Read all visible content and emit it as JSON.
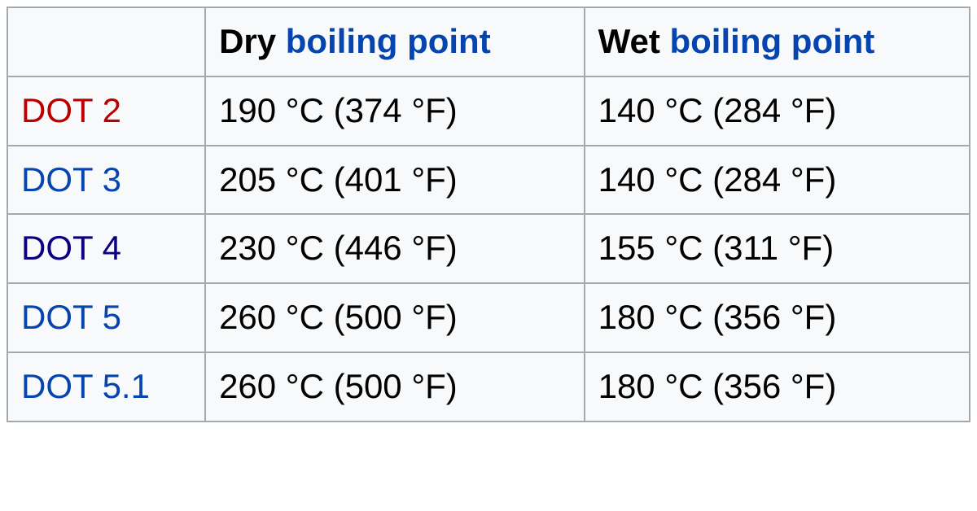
{
  "table": {
    "type": "table",
    "background_color": "#f8f9fa",
    "border_color": "#a2a9b1",
    "text_color": "#000000",
    "link_color": "#0645ad",
    "red_link_color": "#ba0000",
    "visited_link_color": "#0b0080",
    "font_size_pt": 32,
    "columns": [
      {
        "label": "",
        "is_empty": true
      },
      {
        "prefix": "Dry ",
        "link": "boiling point",
        "has_link": true
      },
      {
        "prefix": "Wet ",
        "link": "boiling point",
        "has_link": true
      }
    ],
    "rows": [
      {
        "label": "DOT 2",
        "label_color": "#ba0000",
        "label_class": "label-red",
        "dry": "190 °C (374 °F)",
        "wet": "140 °C (284 °F)"
      },
      {
        "label": "DOT 3",
        "label_color": "#0645ad",
        "label_class": "label-blue",
        "dry": "205 °C (401 °F)",
        "wet": "140 °C (284 °F)"
      },
      {
        "label": "DOT 4",
        "label_color": "#0b0080",
        "label_class": "label-purple",
        "dry": "230 °C (446 °F)",
        "wet": "155 °C (311 °F)"
      },
      {
        "label": "DOT 5",
        "label_color": "#0645ad",
        "label_class": "label-blue",
        "dry": "260 °C (500 °F)",
        "wet": "180 °C (356 °F)"
      },
      {
        "label": "DOT 5.1",
        "label_color": "#0645ad",
        "label_class": "label-blue",
        "dry": "260 °C (500 °F)",
        "wet": "180 °C (356 °F)"
      }
    ]
  }
}
